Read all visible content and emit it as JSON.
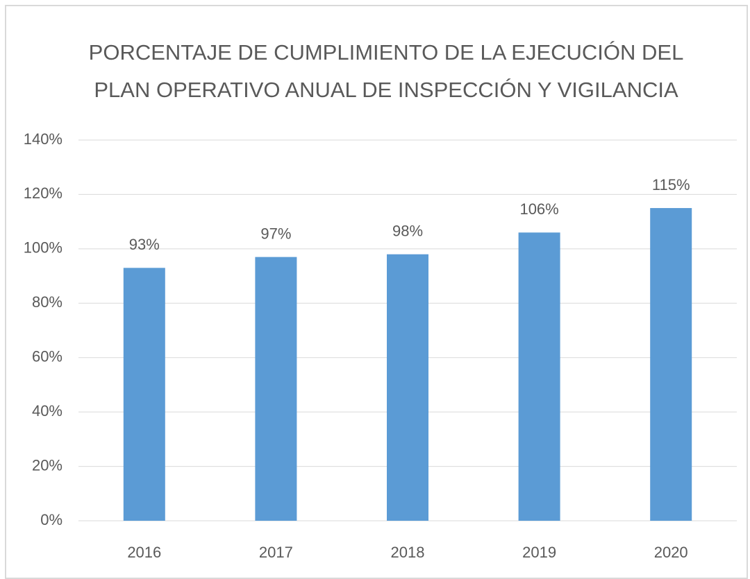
{
  "chart_data": {
    "type": "bar",
    "title": [
      "PORCENTAJE  DE CUMPLIMIENTO DE LA EJECUCIÓN DEL",
      "PLAN OPERATIVO ANUAL DE INSPECCIÓN Y VIGILANCIA"
    ],
    "categories": [
      "2016",
      "2017",
      "2018",
      "2019",
      "2020"
    ],
    "values": [
      93,
      97,
      98,
      106,
      115
    ],
    "value_labels": [
      "93%",
      "97%",
      "98%",
      "106%",
      "115%"
    ],
    "color": "#5b9bd5",
    "ylim": [
      0,
      140
    ],
    "yticks": [
      {
        "value": 0,
        "label": "0%"
      },
      {
        "value": 20,
        "label": "20%"
      },
      {
        "value": 40,
        "label": "40%"
      },
      {
        "value": 60,
        "label": "60%"
      },
      {
        "value": 80,
        "label": "80%"
      },
      {
        "value": 100,
        "label": "100%"
      },
      {
        "value": 120,
        "label": "120%"
      },
      {
        "value": 140,
        "label": "140%"
      }
    ],
    "grid": true
  }
}
